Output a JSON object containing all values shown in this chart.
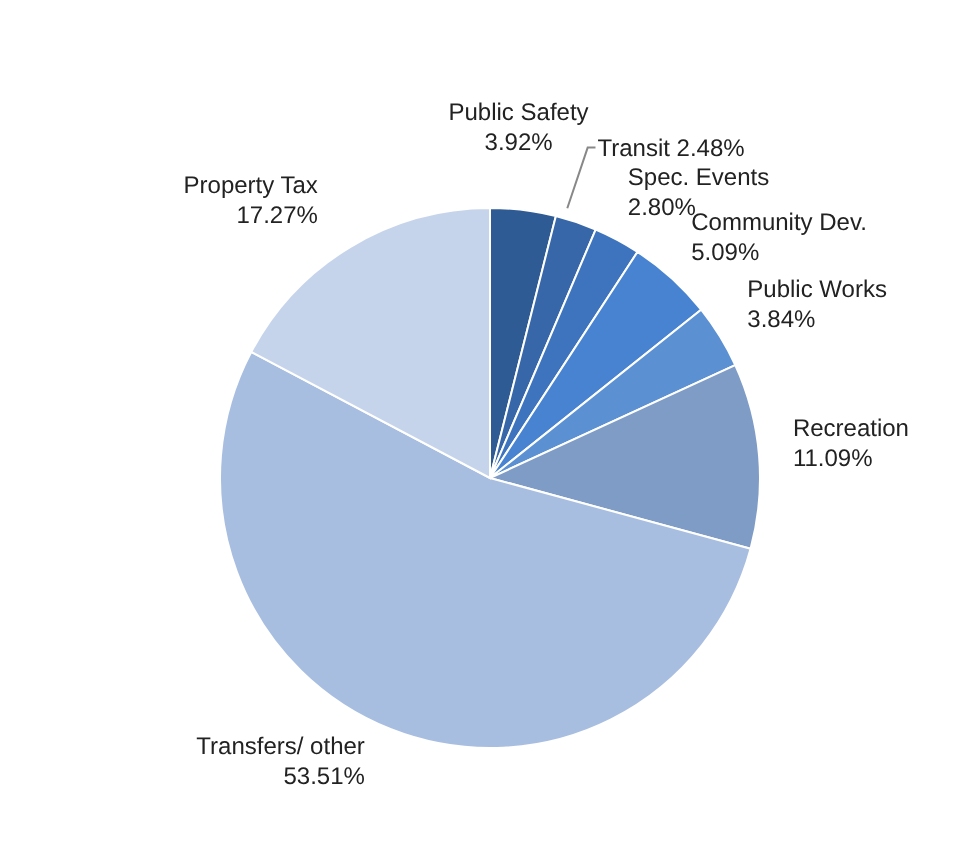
{
  "chart_data": {
    "type": "pie",
    "categories": [
      "Public Safety",
      "Transit",
      "Spec. Events",
      "Community Dev.",
      "Public Works",
      "Recreation",
      "Transfers/ other",
      "Property Tax"
    ],
    "values": [
      3.92,
      2.48,
      2.8,
      5.09,
      3.84,
      11.09,
      53.51,
      17.27
    ],
    "colors": [
      "#2f5b95",
      "#3767a8",
      "#3d74bd",
      "#4783d0",
      "#5b90d3",
      "#7f9cc6",
      "#a8bee0",
      "#c6d4eb"
    ],
    "value_labels": [
      "3.92%",
      "2.48%",
      "2.80%",
      "5.09%",
      "3.84%",
      "11.09%",
      "53.51%",
      "17.27%"
    ]
  }
}
